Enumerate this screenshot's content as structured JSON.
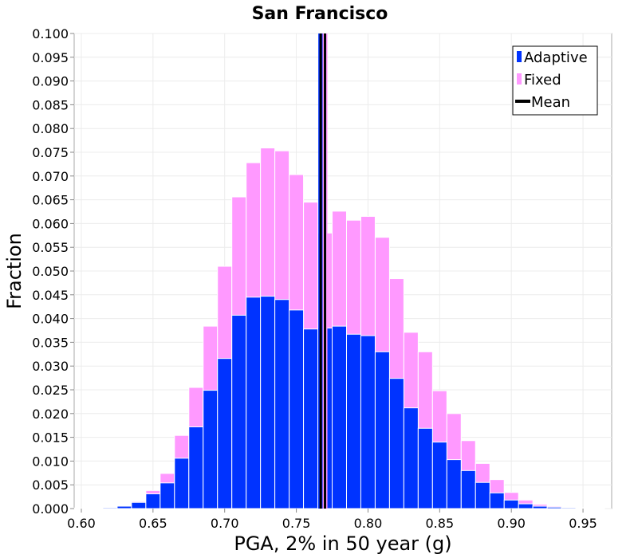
{
  "chart_data": {
    "type": "bar",
    "title": "San Francisco",
    "xlabel": "PGA, 2% in 50 year (g)",
    "ylabel": "Fraction",
    "xlim": [
      0.595,
      0.97
    ],
    "ylim": [
      0,
      0.1
    ],
    "xticks": [
      "0.60",
      "0.65",
      "0.70",
      "0.75",
      "0.80",
      "0.85",
      "0.90",
      "0.95"
    ],
    "yticks": [
      "0.000",
      "0.005",
      "0.010",
      "0.015",
      "0.020",
      "0.025",
      "0.030",
      "0.035",
      "0.040",
      "0.045",
      "0.050",
      "0.055",
      "0.060",
      "0.065",
      "0.070",
      "0.075",
      "0.080",
      "0.085",
      "0.090",
      "0.095",
      "0.100"
    ],
    "grid": true,
    "legend_position": "top-right",
    "bin_width": 0.01,
    "bin_centers": [
      0.6,
      0.61,
      0.62,
      0.63,
      0.64,
      0.65,
      0.66,
      0.67,
      0.68,
      0.69,
      0.7,
      0.71,
      0.72,
      0.73,
      0.74,
      0.75,
      0.76,
      0.77,
      0.78,
      0.79,
      0.8,
      0.81,
      0.82,
      0.83,
      0.84,
      0.85,
      0.86,
      0.87,
      0.88,
      0.89,
      0.9,
      0.91,
      0.92,
      0.93,
      0.94,
      0.95,
      0.96
    ],
    "series": [
      {
        "name": "Fixed",
        "color": "#ff99ff",
        "values": [
          0.0001,
          0.0002,
          0.0003,
          0.0006,
          0.0015,
          0.0038,
          0.0074,
          0.0154,
          0.0255,
          0.0384,
          0.051,
          0.0656,
          0.0728,
          0.0759,
          0.0753,
          0.0703,
          0.0645,
          0.058,
          0.0626,
          0.0607,
          0.0615,
          0.0571,
          0.0484,
          0.0371,
          0.033,
          0.0248,
          0.02,
          0.0143,
          0.0095,
          0.0061,
          0.0034,
          0.0018,
          0.0009,
          0.0005,
          0.0003,
          0.0002,
          0.0001
        ]
      },
      {
        "name": "Adaptive",
        "color": "#0033ff",
        "values": [
          0.0001,
          0.0001,
          0.0002,
          0.0005,
          0.0013,
          0.0031,
          0.0054,
          0.0106,
          0.0172,
          0.0249,
          0.0316,
          0.0407,
          0.0445,
          0.0447,
          0.044,
          0.0418,
          0.0378,
          0.038,
          0.0384,
          0.0367,
          0.0364,
          0.033,
          0.0274,
          0.0212,
          0.0169,
          0.014,
          0.0103,
          0.008,
          0.0055,
          0.0033,
          0.0018,
          0.001,
          0.0005,
          0.0003,
          0.0002,
          0.0001,
          0.0001
        ]
      }
    ],
    "mean_lines": [
      {
        "series": "Adaptive",
        "x": 0.767,
        "color": "#0033ff"
      },
      {
        "series": "Fixed",
        "x": 0.77,
        "color": "#ff99ff"
      }
    ],
    "legend": [
      {
        "label": "Adaptive",
        "color": "#0033ff",
        "kind": "box"
      },
      {
        "label": "Fixed",
        "color": "#ff99ff",
        "kind": "box"
      },
      {
        "label": "Mean",
        "color": "#000000",
        "kind": "line"
      }
    ]
  }
}
